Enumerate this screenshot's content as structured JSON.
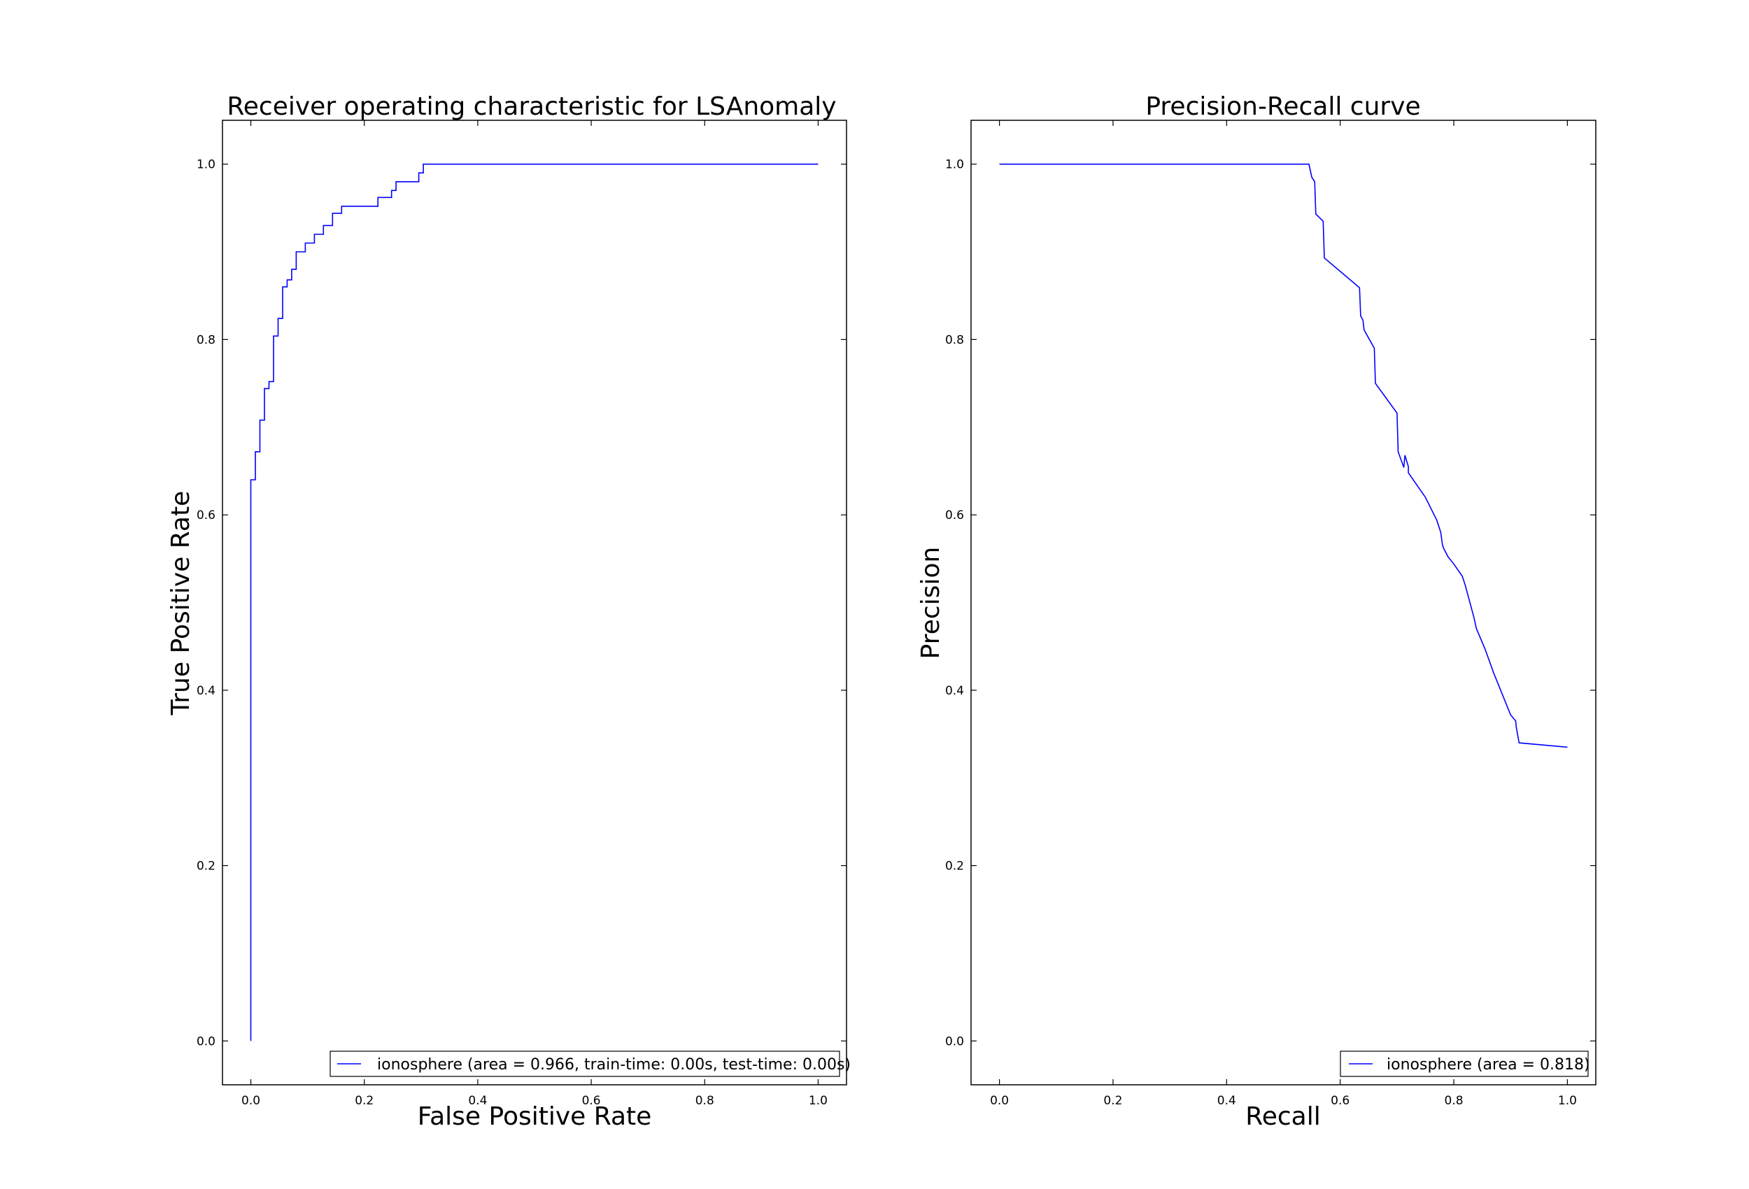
{
  "chart_data": [
    {
      "type": "line",
      "title": "Receiver operating characteristic for LSAnomaly",
      "xlabel": "False Positive Rate",
      "ylabel": "True Positive Rate",
      "xlim": [
        -0.05,
        1.05
      ],
      "ylim": [
        -0.05,
        1.05
      ],
      "xticks": [
        "0.0",
        "0.2",
        "0.4",
        "0.6",
        "0.8",
        "1.0"
      ],
      "yticks": [
        "0.0",
        "0.2",
        "0.4",
        "0.6",
        "0.8",
        "1.0"
      ],
      "grid": false,
      "legend_position": "bottom-right",
      "color": "#0000ff",
      "series": [
        {
          "name": "ionosphere (area = 0.966, train-time: 0.00s, test-time: 0.00s)",
          "x": [
            0.0,
            0.0,
            0.008,
            0.008,
            0.016,
            0.016,
            0.024,
            0.024,
            0.032,
            0.032,
            0.04,
            0.04,
            0.048,
            0.048,
            0.056,
            0.056,
            0.064,
            0.064,
            0.072,
            0.072,
            0.08,
            0.08,
            0.088,
            0.088,
            0.096,
            0.096,
            0.112,
            0.112,
            0.128,
            0.128,
            0.144,
            0.144,
            0.16,
            0.16,
            0.168,
            0.168,
            0.184,
            0.184,
            0.224,
            0.224,
            0.248,
            0.248,
            0.256,
            0.256,
            0.264,
            0.264,
            0.296,
            0.296,
            0.304,
            0.304,
            1.0
          ],
          "y": [
            0.0,
            0.64,
            0.64,
            0.672,
            0.672,
            0.708,
            0.708,
            0.744,
            0.744,
            0.752,
            0.752,
            0.804,
            0.804,
            0.824,
            0.824,
            0.86,
            0.86,
            0.868,
            0.868,
            0.88,
            0.88,
            0.9,
            0.9,
            0.9,
            0.9,
            0.91,
            0.91,
            0.92,
            0.92,
            0.93,
            0.93,
            0.944,
            0.944,
            0.952,
            0.952,
            0.952,
            0.952,
            0.952,
            0.952,
            0.962,
            0.962,
            0.97,
            0.97,
            0.98,
            0.98,
            0.98,
            0.98,
            0.99,
            0.99,
            1.0,
            1.0
          ]
        }
      ]
    },
    {
      "type": "line",
      "title": "Precision-Recall curve",
      "xlabel": "Recall",
      "ylabel": "Precision",
      "xlim": [
        -0.05,
        1.05
      ],
      "ylim": [
        -0.05,
        1.05
      ],
      "xticks": [
        "0.0",
        "0.2",
        "0.4",
        "0.6",
        "0.8",
        "1.0"
      ],
      "yticks": [
        "0.0",
        "0.2",
        "0.4",
        "0.6",
        "0.8",
        "1.0"
      ],
      "grid": false,
      "legend_position": "bottom-right",
      "color": "#0000ff",
      "series": [
        {
          "name": "ionosphere (area = 0.818)",
          "x": [
            0.0,
            0.545,
            0.55,
            0.555,
            0.557,
            0.57,
            0.572,
            0.634,
            0.636,
            0.64,
            0.642,
            0.66,
            0.662,
            0.7,
            0.702,
            0.712,
            0.714,
            0.72,
            0.72,
            0.75,
            0.77,
            0.777,
            0.78,
            0.782,
            0.79,
            0.8,
            0.815,
            0.82,
            0.835,
            0.84,
            0.855,
            0.87,
            0.89,
            0.9,
            0.905,
            0.909,
            0.91,
            0.915,
            1.0
          ],
          "y": [
            1.0,
            1.0,
            0.985,
            0.98,
            0.943,
            0.935,
            0.893,
            0.859,
            0.827,
            0.822,
            0.811,
            0.79,
            0.75,
            0.716,
            0.672,
            0.654,
            0.668,
            0.655,
            0.648,
            0.62,
            0.594,
            0.58,
            0.566,
            0.562,
            0.552,
            0.544,
            0.53,
            0.52,
            0.484,
            0.47,
            0.447,
            0.42,
            0.388,
            0.372,
            0.368,
            0.365,
            0.358,
            0.34,
            0.335
          ]
        }
      ]
    }
  ]
}
